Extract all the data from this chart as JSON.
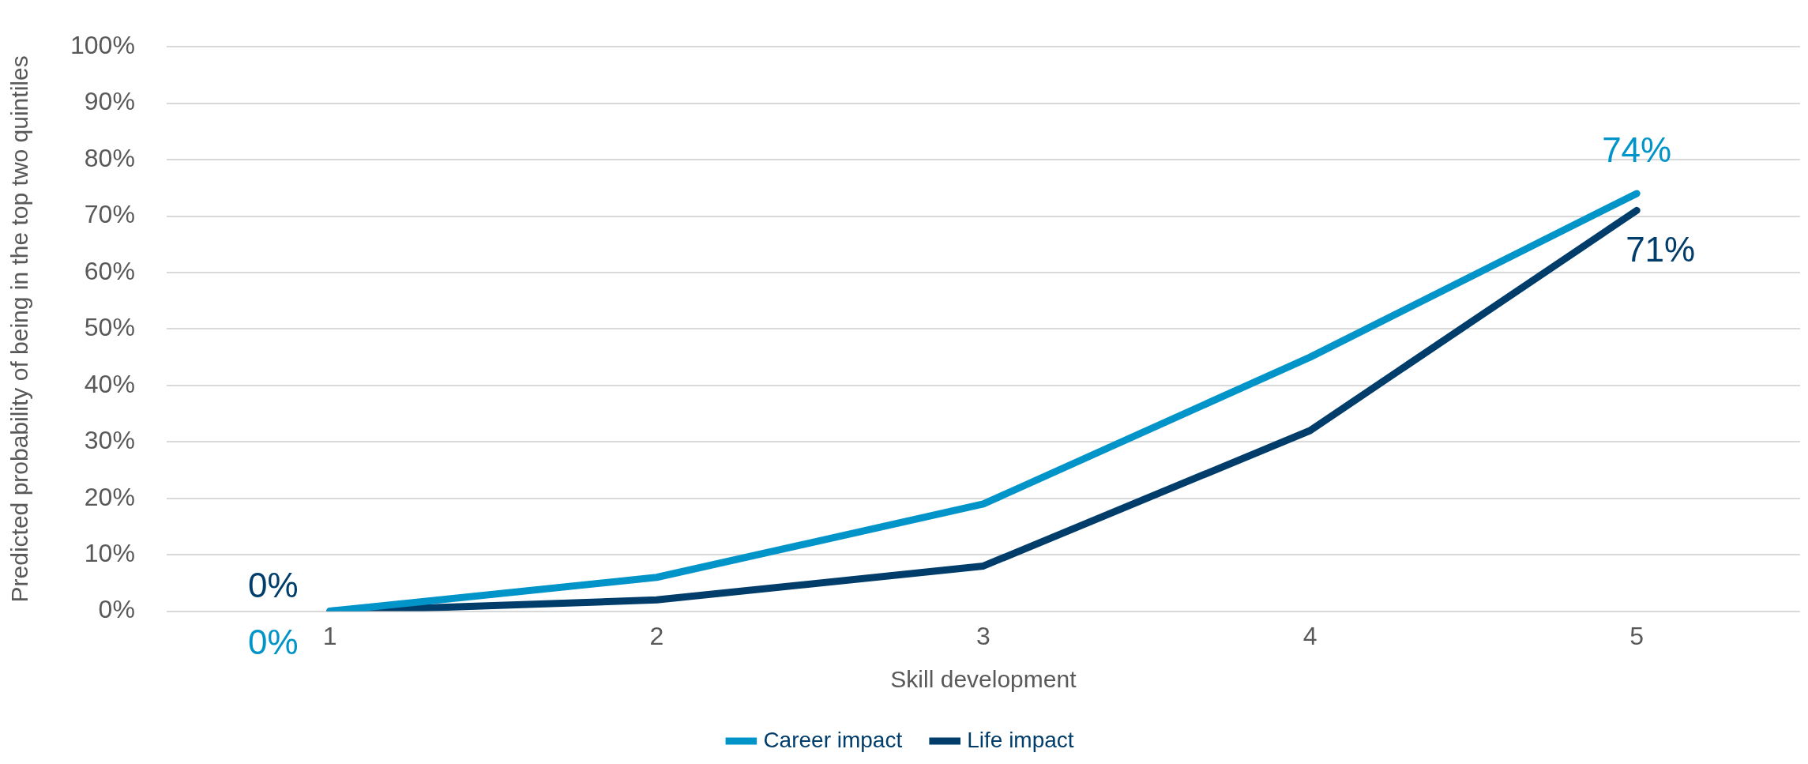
{
  "chart_data": {
    "type": "line",
    "xlabel": "Skill development",
    "ylabel": "Predicted probability of being in the top two quintiles",
    "categories": [
      "1",
      "2",
      "3",
      "4",
      "5"
    ],
    "series": [
      {
        "name": "Career impact",
        "color": "#0094c8",
        "values": [
          0,
          6,
          19,
          45,
          74
        ],
        "value_labels": [
          "0%",
          null,
          null,
          null,
          "74%"
        ]
      },
      {
        "name": "Life impact",
        "color": "#003d6b",
        "values": [
          0,
          2,
          8,
          32,
          71
        ],
        "value_labels": [
          "0%",
          null,
          null,
          null,
          "71%"
        ]
      }
    ],
    "ylim": [
      0,
      100
    ],
    "yticks": [
      {
        "value": 0,
        "label": "0%"
      },
      {
        "value": 10,
        "label": "10%"
      },
      {
        "value": 20,
        "label": "20%"
      },
      {
        "value": 30,
        "label": "30%"
      },
      {
        "value": 40,
        "label": "40%"
      },
      {
        "value": 50,
        "label": "50%"
      },
      {
        "value": 60,
        "label": "60%"
      },
      {
        "value": 70,
        "label": "70%"
      },
      {
        "value": 80,
        "label": "80%"
      },
      {
        "value": 90,
        "label": "90%"
      },
      {
        "value": 100,
        "label": "100%"
      }
    ],
    "grid": "y",
    "legend": "bottom",
    "marker": "none",
    "line_style": "solid"
  }
}
